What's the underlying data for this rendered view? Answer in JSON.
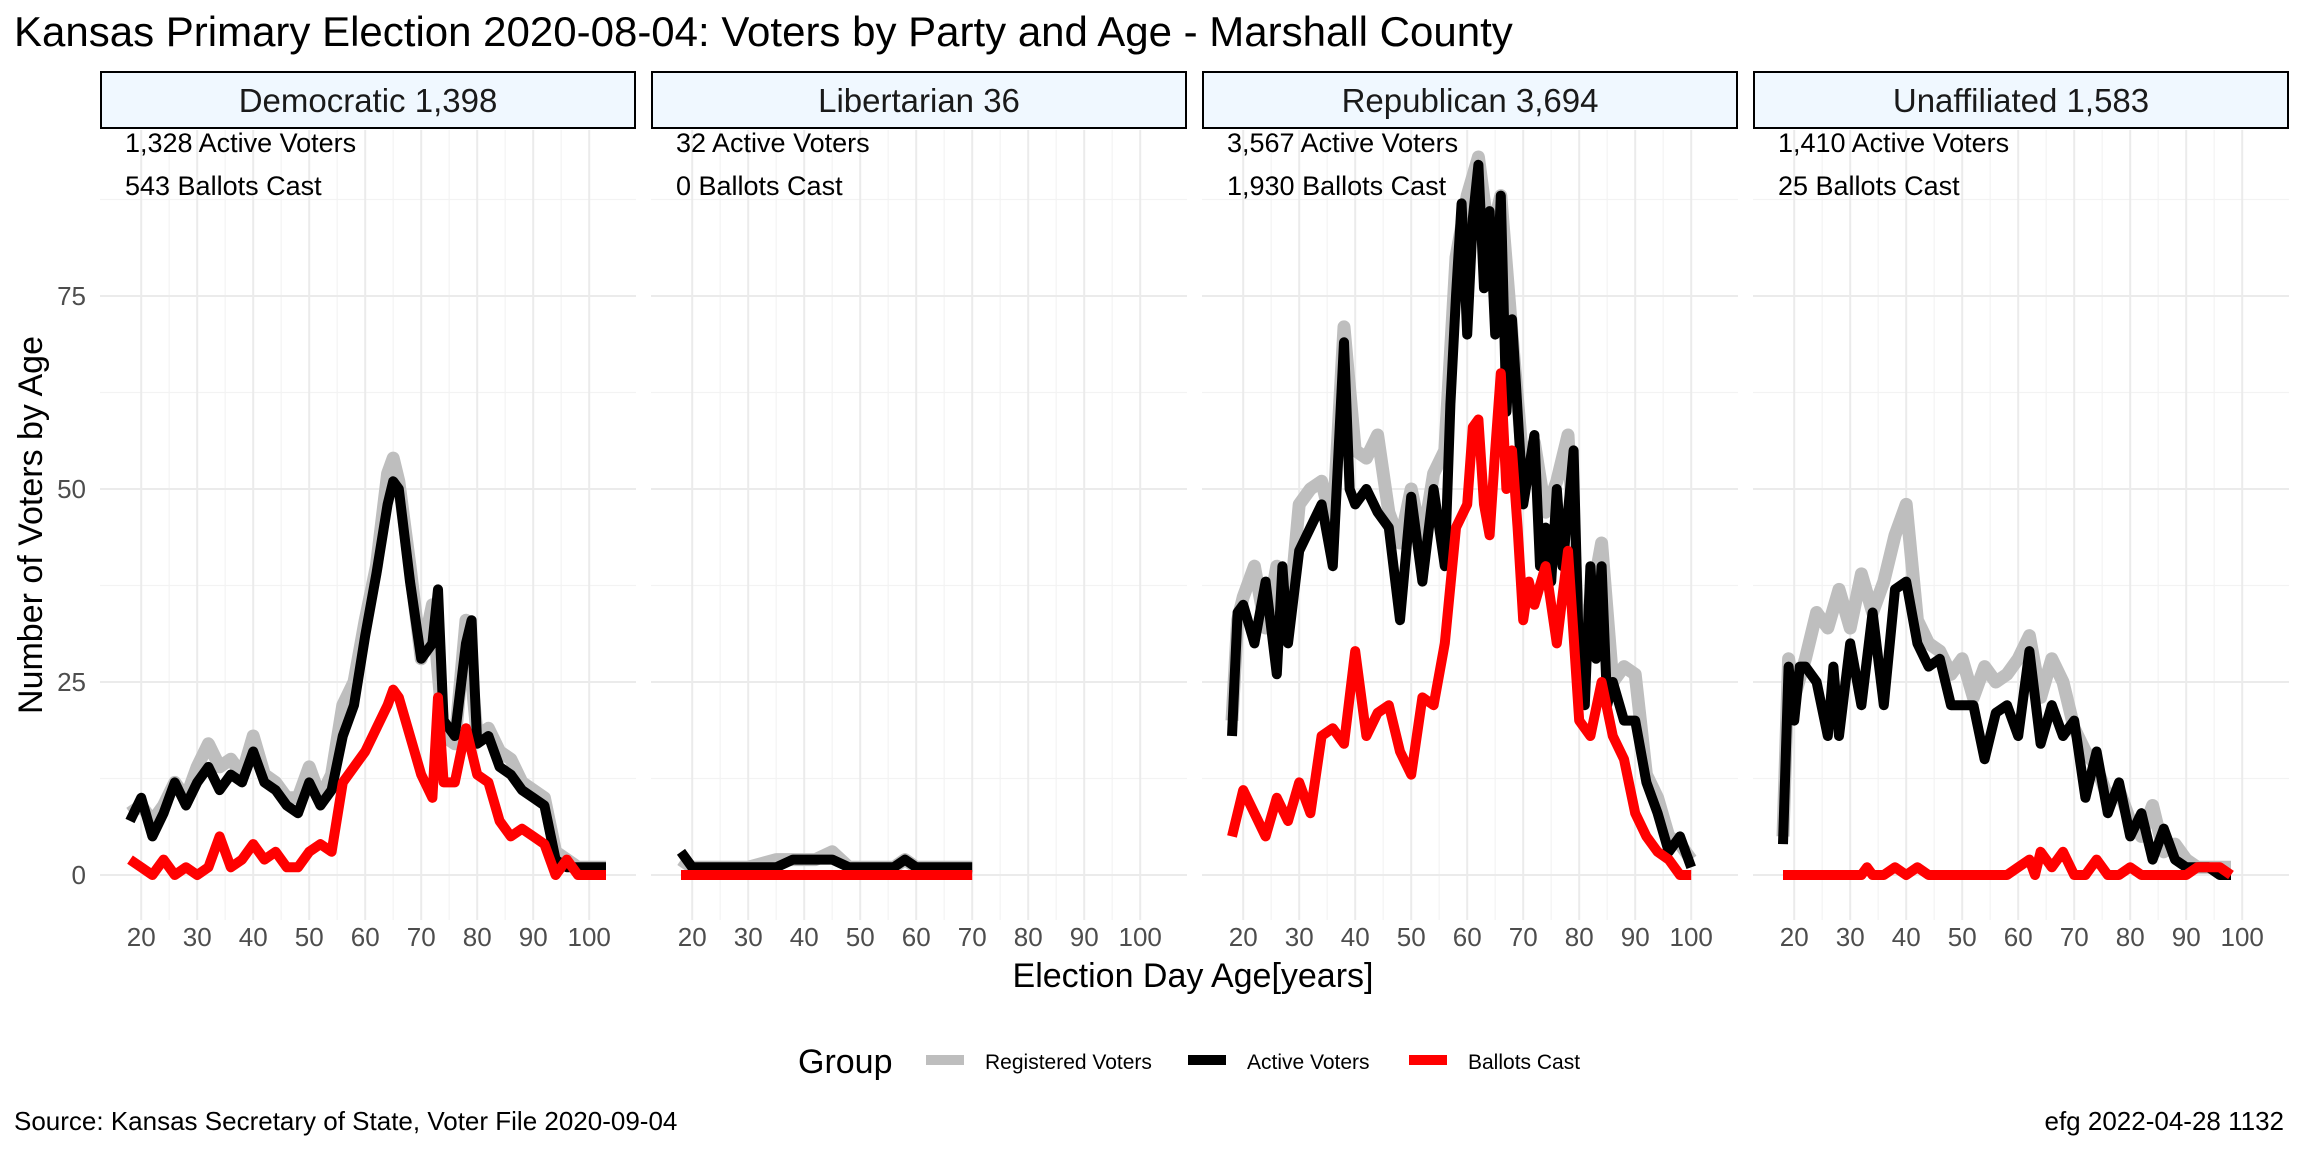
{
  "title": "Kansas Primary Election 2020-08-04:  Voters by Party and Age - Marshall County",
  "source": "Source:  Kansas Secretary of State, Voter File  2020-09-04",
  "stamp": "efg 2022-04-28 1132",
  "chart_data": {
    "type": "line",
    "xlabel": "Election Day Age[years]",
    "ylabel": "Number of Voters by Age",
    "xlim": [
      18,
      103
    ],
    "ylim": [
      0,
      92
    ],
    "xticks": [
      20,
      30,
      40,
      50,
      60,
      70,
      80,
      90,
      100
    ],
    "yticks": [
      0,
      25,
      50,
      75
    ],
    "grid": true,
    "legend": {
      "title": "Group",
      "position": "bottom",
      "entries": [
        {
          "label": "Registered Voters",
          "color": "#bebebe"
        },
        {
          "label": "Active Voters",
          "color": "#000000"
        },
        {
          "label": "Ballots Cast",
          "color": "#ff0000"
        }
      ]
    },
    "panels": [
      {
        "strip": "Democratic 1,398",
        "note1": "1,328 Active Voters",
        "note2": "543 Ballots Cast",
        "series": [
          {
            "name": "Registered Voters",
            "x": [
              18,
              20,
              22,
              24,
              26,
              28,
              30,
              32,
              34,
              36,
              38,
              40,
              42,
              44,
              46,
              48,
              50,
              52,
              54,
              56,
              58,
              60,
              62,
              64,
              65,
              66,
              68,
              70,
              72,
              74,
              76,
              78,
              80,
              82,
              84,
              86,
              88,
              90,
              92,
              94,
              96,
              98,
              100,
              103
            ],
            "y": [
              8,
              9,
              7,
              9,
              12,
              10,
              14,
              17,
              14,
              15,
              13,
              18,
              13,
              12,
              10,
              10,
              14,
              10,
              13,
              22,
              25,
              33,
              40,
              52,
              54,
              51,
              40,
              28,
              35,
              18,
              17,
              33,
              18,
              19,
              16,
              15,
              12,
              11,
              10,
              3,
              2,
              1,
              1,
              1
            ]
          },
          {
            "name": "Active Voters",
            "x": [
              18,
              20,
              22,
              24,
              26,
              28,
              30,
              32,
              34,
              36,
              38,
              40,
              42,
              44,
              46,
              48,
              50,
              52,
              54,
              56,
              58,
              60,
              62,
              64,
              65,
              66,
              68,
              70,
              72,
              73,
              74,
              76,
              78,
              79,
              80,
              82,
              84,
              86,
              88,
              90,
              92,
              94,
              96,
              98,
              100,
              103
            ],
            "y": [
              7,
              10,
              5,
              8,
              12,
              9,
              12,
              14,
              11,
              13,
              12,
              16,
              12,
              11,
              9,
              8,
              12,
              9,
              11,
              18,
              22,
              31,
              39,
              48,
              51,
              50,
              38,
              28,
              30,
              37,
              20,
              18,
              30,
              33,
              17,
              18,
              14,
              13,
              11,
              10,
              9,
              2,
              1,
              1,
              1,
              1
            ]
          },
          {
            "name": "Ballots Cast",
            "x": [
              18,
              20,
              22,
              24,
              26,
              28,
              30,
              32,
              34,
              36,
              38,
              40,
              42,
              44,
              46,
              48,
              50,
              52,
              54,
              56,
              58,
              60,
              62,
              64,
              65,
              66,
              68,
              70,
              72,
              73,
              74,
              76,
              78,
              80,
              82,
              84,
              86,
              88,
              90,
              92,
              94,
              96,
              98,
              100,
              103
            ],
            "y": [
              2,
              1,
              0,
              2,
              0,
              1,
              0,
              1,
              5,
              1,
              2,
              4,
              2,
              3,
              1,
              1,
              3,
              4,
              3,
              12,
              14,
              16,
              19,
              22,
              24,
              23,
              18,
              13,
              10,
              23,
              12,
              12,
              19,
              13,
              12,
              7,
              5,
              6,
              5,
              4,
              0,
              2,
              0,
              0,
              0
            ]
          }
        ]
      },
      {
        "strip": "Libertarian 36",
        "note1": "32 Active Voters",
        "note2": "0 Ballots Cast",
        "series": [
          {
            "name": "Registered Voters",
            "x": [
              18,
              20,
              22,
              25,
              30,
              35,
              38,
              40,
              42,
              45,
              48,
              52,
              56,
              58,
              60,
              65,
              70
            ],
            "y": [
              2,
              1,
              1,
              1,
              1,
              2,
              2,
              2,
              2,
              3,
              1,
              1,
              1,
              2,
              1,
              1,
              1
            ]
          },
          {
            "name": "Active Voters",
            "x": [
              18,
              20,
              22,
              25,
              30,
              35,
              38,
              40,
              42,
              45,
              48,
              52,
              56,
              58,
              60,
              65,
              70
            ],
            "y": [
              3,
              1,
              1,
              1,
              1,
              1,
              2,
              2,
              2,
              2,
              1,
              1,
              1,
              2,
              1,
              1,
              1
            ]
          },
          {
            "name": "Ballots Cast",
            "x": [
              18,
              70
            ],
            "y": [
              0,
              0
            ]
          }
        ]
      },
      {
        "strip": "Republican 3,694",
        "note1": "3,567 Active Voters",
        "note2": "1,930 Ballots Cast",
        "series": [
          {
            "name": "Registered Voters",
            "x": [
              18,
              19,
              20,
              22,
              24,
              26,
              28,
              30,
              32,
              34,
              36,
              38,
              40,
              42,
              44,
              46,
              48,
              50,
              52,
              54,
              56,
              58,
              60,
              62,
              64,
              66,
              68,
              70,
              72,
              74,
              76,
              78,
              80,
              82,
              84,
              86,
              88,
              90,
              92,
              94,
              96,
              98,
              100
            ],
            "y": [
              20,
              33,
              36,
              40,
              32,
              40,
              32,
              48,
              50,
              51,
              45,
              71,
              55,
              54,
              57,
              47,
              43,
              50,
              43,
              52,
              55,
              80,
              88,
              93,
              82,
              88,
              70,
              53,
              56,
              47,
              51,
              57,
              30,
              35,
              43,
              25,
              27,
              26,
              13,
              10,
              5,
              4,
              2
            ]
          },
          {
            "name": "Active Voters",
            "x": [
              18,
              19,
              20,
              22,
              24,
              26,
              27,
              28,
              30,
              32,
              34,
              36,
              38,
              39,
              40,
              42,
              44,
              46,
              48,
              50,
              52,
              54,
              56,
              57,
              58,
              59,
              60,
              61,
              62,
              63,
              64,
              65,
              66,
              67,
              68,
              70,
              72,
              73,
              74,
              75,
              76,
              77,
              78,
              79,
              80,
              81,
              82,
              83,
              84,
              85,
              86,
              88,
              90,
              92,
              94,
              96,
              98,
              100
            ],
            "y": [
              18,
              34,
              35,
              30,
              38,
              26,
              40,
              30,
              42,
              45,
              48,
              40,
              69,
              50,
              48,
              50,
              47,
              45,
              33,
              49,
              38,
              50,
              40,
              61,
              75,
              87,
              70,
              85,
              92,
              76,
              86,
              70,
              88,
              60,
              72,
              48,
              57,
              40,
              45,
              38,
              50,
              40,
              47,
              55,
              27,
              22,
              40,
              28,
              40,
              22,
              25,
              20,
              20,
              12,
              8,
              3,
              5,
              1
            ]
          },
          {
            "name": "Ballots Cast",
            "x": [
              18,
              20,
              22,
              24,
              26,
              28,
              30,
              32,
              34,
              36,
              38,
              40,
              42,
              44,
              46,
              48,
              50,
              52,
              54,
              56,
              58,
              60,
              61,
              62,
              63,
              64,
              65,
              66,
              67,
              68,
              69,
              70,
              71,
              72,
              74,
              76,
              78,
              80,
              82,
              84,
              86,
              88,
              90,
              92,
              94,
              96,
              98,
              100
            ],
            "y": [
              5,
              11,
              8,
              5,
              10,
              7,
              12,
              8,
              18,
              19,
              17,
              29,
              18,
              21,
              22,
              16,
              13,
              23,
              22,
              30,
              45,
              48,
              58,
              59,
              48,
              44,
              55,
              65,
              50,
              55,
              45,
              33,
              38,
              35,
              40,
              30,
              42,
              20,
              18,
              25,
              18,
              15,
              8,
              5,
              3,
              2,
              0,
              0
            ]
          }
        ]
      },
      {
        "strip": "Unaffiliated 1,583",
        "note1": "1,410 Active Voters",
        "note2": "25 Ballots Cast",
        "series": [
          {
            "name": "Registered Voters",
            "x": [
              18,
              19,
              20,
              22,
              24,
              26,
              28,
              30,
              32,
              34,
              36,
              38,
              40,
              42,
              44,
              46,
              48,
              50,
              52,
              54,
              56,
              58,
              60,
              62,
              64,
              66,
              68,
              70,
              72,
              74,
              76,
              78,
              80,
              82,
              84,
              86,
              88,
              90,
              92,
              94,
              96,
              98
            ],
            "y": [
              5,
              28,
              23,
              28,
              34,
              32,
              37,
              32,
              39,
              34,
              38,
              44,
              48,
              33,
              30,
              29,
              26,
              28,
              23,
              27,
              25,
              26,
              28,
              31,
              23,
              28,
              25,
              19,
              16,
              14,
              10,
              11,
              7,
              5,
              9,
              3,
              4,
              2,
              1,
              1,
              1,
              1
            ]
          },
          {
            "name": "Active Voters",
            "x": [
              18,
              19,
              20,
              21,
              22,
              24,
              26,
              27,
              28,
              30,
              32,
              34,
              36,
              38,
              40,
              42,
              44,
              46,
              48,
              50,
              52,
              54,
              56,
              58,
              60,
              62,
              64,
              66,
              68,
              70,
              72,
              74,
              76,
              78,
              80,
              82,
              84,
              86,
              88,
              90,
              92,
              94,
              96,
              98
            ],
            "y": [
              4,
              27,
              20,
              27,
              27,
              25,
              18,
              27,
              18,
              30,
              22,
              34,
              22,
              37,
              38,
              30,
              27,
              28,
              22,
              22,
              22,
              15,
              21,
              22,
              18,
              29,
              17,
              22,
              18,
              20,
              10,
              16,
              8,
              12,
              5,
              8,
              2,
              6,
              2,
              1,
              1,
              1,
              0,
              0
            ]
          },
          {
            "name": "Ballots Cast",
            "x": [
              18,
              20,
              25,
              30,
              32,
              33,
              34,
              36,
              38,
              40,
              42,
              44,
              46,
              48,
              50,
              55,
              58,
              60,
              62,
              63,
              64,
              66,
              68,
              70,
              72,
              74,
              76,
              78,
              80,
              82,
              84,
              86,
              88,
              90,
              92,
              94,
              96,
              98
            ],
            "y": [
              0,
              0,
              0,
              0,
              0,
              1,
              0,
              0,
              1,
              0,
              1,
              0,
              0,
              0,
              0,
              0,
              0,
              1,
              2,
              0,
              3,
              1,
              3,
              0,
              0,
              2,
              0,
              0,
              1,
              0,
              0,
              0,
              0,
              0,
              1,
              1,
              1,
              0
            ]
          }
        ]
      }
    ]
  }
}
